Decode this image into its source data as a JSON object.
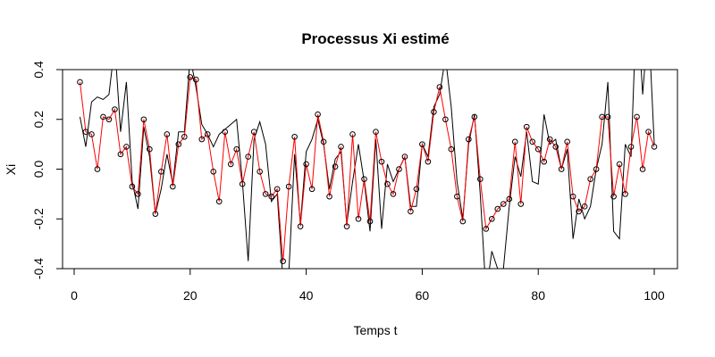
{
  "chart_data": {
    "type": "line",
    "title": "Processus Xi estimé",
    "xlabel": "Temps t",
    "ylabel": "Xi",
    "xlim": [
      -2,
      104
    ],
    "ylim": [
      -0.4,
      0.4
    ],
    "x_ticks": [
      "0",
      "20",
      "40",
      "60",
      "80",
      "100"
    ],
    "y_ticks": [
      "-0.4",
      "-0.2",
      "0.0",
      "0.2",
      "0.4"
    ],
    "grid": false,
    "legend": "none",
    "colors": {
      "estimated": "#ff0000",
      "true": "#000000",
      "point_outline": "#000000"
    },
    "series": [
      {
        "style": "line-black",
        "x": [
          1,
          2,
          3,
          4,
          5,
          6,
          7,
          8,
          9,
          10,
          11,
          12,
          13,
          14,
          15,
          16,
          17,
          18,
          19,
          20,
          21,
          22,
          23,
          24,
          25,
          26,
          27,
          28,
          29,
          30,
          31,
          32,
          33,
          34,
          35,
          36,
          37,
          38,
          39,
          40,
          41,
          42,
          43,
          44,
          45,
          46,
          47,
          48,
          49,
          50,
          51,
          52,
          53,
          54,
          55,
          56,
          57,
          58,
          59,
          60,
          61,
          62,
          63,
          64,
          65,
          66,
          67,
          68,
          69,
          70,
          71,
          72,
          73,
          74,
          75,
          76,
          77,
          78,
          79,
          80,
          81,
          82,
          83,
          84,
          85,
          86,
          87,
          88,
          89,
          90,
          91,
          92,
          93,
          94,
          95,
          96,
          97,
          98,
          99,
          100
        ],
        "values": [
          0.21,
          0.09,
          0.27,
          0.29,
          0.28,
          0.3,
          0.5,
          0.15,
          0.35,
          -0.05,
          -0.16,
          0.17,
          0.05,
          -0.18,
          -0.08,
          0.06,
          -0.06,
          0.15,
          0.15,
          0.45,
          0.33,
          0.18,
          0.14,
          0.09,
          0.14,
          0.16,
          0.18,
          0.2,
          -0.05,
          -0.37,
          0.12,
          0.19,
          0.1,
          -0.13,
          -0.1,
          -0.45,
          -0.42,
          0.06,
          -0.22,
          0.07,
          0.12,
          0.2,
          0.1,
          -0.08,
          0.04,
          0.07,
          -0.22,
          -0.05,
          0.1,
          -0.05,
          -0.25,
          0.12,
          -0.24,
          0.02,
          -0.05,
          0.0,
          0.05,
          -0.15,
          -0.15,
          0.1,
          0.05,
          0.25,
          0.3,
          0.45,
          0.25,
          -0.05,
          -0.2,
          0.1,
          0.22,
          -0.1,
          -0.5,
          -0.33,
          -0.4,
          -0.4,
          -0.15,
          0.05,
          -0.03,
          0.15,
          -0.05,
          -0.06,
          0.22,
          0.1,
          0.12,
          0.0,
          0.08,
          -0.28,
          -0.12,
          -0.2,
          -0.15,
          0.0,
          0.1,
          0.35,
          -0.25,
          -0.28,
          0.1,
          0.05,
          0.7,
          0.3,
          0.6,
          0.1
        ]
      },
      {
        "style": "line-red-circles",
        "x": [
          1,
          2,
          3,
          4,
          5,
          6,
          7,
          8,
          9,
          10,
          11,
          12,
          13,
          14,
          15,
          16,
          17,
          18,
          19,
          20,
          21,
          22,
          23,
          24,
          25,
          26,
          27,
          28,
          29,
          30,
          31,
          32,
          33,
          34,
          35,
          36,
          37,
          38,
          39,
          40,
          41,
          42,
          43,
          44,
          45,
          46,
          47,
          48,
          49,
          50,
          51,
          52,
          53,
          54,
          55,
          56,
          57,
          58,
          59,
          60,
          61,
          62,
          63,
          64,
          65,
          66,
          67,
          68,
          69,
          70,
          71,
          72,
          73,
          74,
          75,
          76,
          77,
          78,
          79,
          80,
          81,
          82,
          83,
          84,
          85,
          86,
          87,
          88,
          89,
          90,
          91,
          92,
          93,
          94,
          95,
          96,
          97,
          98,
          99,
          100
        ],
        "values": [
          0.35,
          0.15,
          0.14,
          0.0,
          0.21,
          0.2,
          0.24,
          0.06,
          0.09,
          -0.07,
          -0.1,
          0.2,
          0.08,
          -0.18,
          -0.01,
          0.14,
          -0.07,
          0.1,
          0.13,
          0.37,
          0.36,
          0.12,
          0.14,
          -0.01,
          -0.13,
          0.15,
          0.02,
          0.08,
          -0.06,
          0.05,
          0.15,
          -0.01,
          -0.1,
          -0.11,
          -0.08,
          -0.37,
          -0.07,
          0.13,
          -0.23,
          0.02,
          -0.08,
          0.22,
          0.11,
          -0.11,
          0.01,
          0.09,
          -0.23,
          0.14,
          -0.2,
          -0.04,
          -0.21,
          0.15,
          0.03,
          -0.06,
          -0.1,
          0.0,
          0.05,
          -0.17,
          -0.08,
          0.1,
          0.03,
          0.23,
          0.33,
          0.2,
          0.08,
          -0.11,
          -0.21,
          0.12,
          0.21,
          -0.04,
          -0.24,
          -0.2,
          -0.16,
          -0.14,
          -0.12,
          0.11,
          -0.14,
          0.17,
          0.11,
          0.08,
          0.03,
          0.12,
          0.09,
          0.0,
          0.11,
          -0.11,
          -0.17,
          -0.15,
          -0.04,
          0.0,
          0.21,
          0.21,
          -0.11,
          0.02,
          -0.1,
          0.09,
          0.21,
          0.0,
          0.15,
          0.09
        ]
      }
    ]
  }
}
